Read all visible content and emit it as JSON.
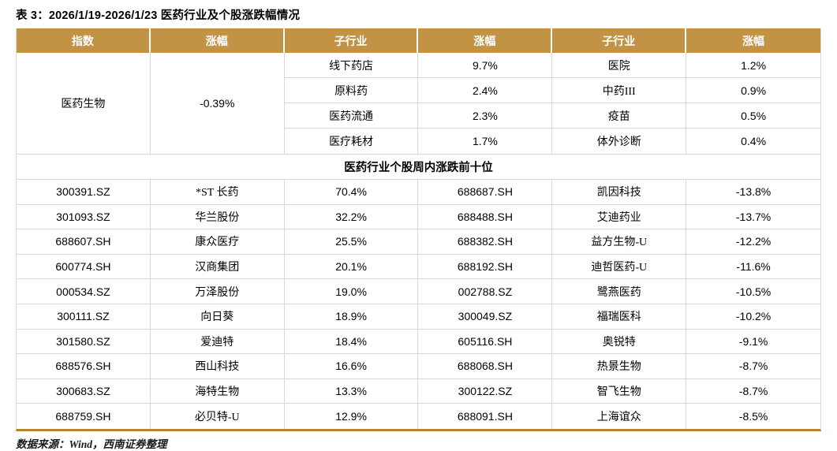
{
  "title": "表 3：2026/1/19-2026/1/23 医药行业及个股涨跌幅情况",
  "colors": {
    "header_bg": "#C29245",
    "bottom_border": "#B5832F",
    "grid_line": "#D9D9D9",
    "header_text": "#FFFFFF",
    "body_text": "#000000"
  },
  "header": {
    "col1": "指数",
    "col2": "涨幅",
    "col3": "子行业",
    "col4": "涨幅",
    "col5": "子行业",
    "col6": "涨幅"
  },
  "summary": {
    "index_name": "医药生物",
    "index_change": "-0.39%",
    "rows": [
      {
        "sub1": "线下药店",
        "chg1": "9.7%",
        "sub2": "医院",
        "chg2": "1.2%"
      },
      {
        "sub1": "原料药",
        "chg1": "2.4%",
        "sub2": "中药III",
        "chg2": "0.9%"
      },
      {
        "sub1": "医药流通",
        "chg1": "2.3%",
        "sub2": "疫苗",
        "chg2": "0.5%"
      },
      {
        "sub1": "医疗耗材",
        "chg1": "1.7%",
        "sub2": "体外诊断",
        "chg2": "0.4%"
      }
    ]
  },
  "section_header": "医药行业个股周内涨跌前十位",
  "stocks": [
    {
      "code_up": "300391.SZ",
      "name_up": "*ST 长药",
      "chg_up": "70.4%",
      "code_down": "688687.SH",
      "name_down": "凯因科技",
      "chg_down": "-13.8%"
    },
    {
      "code_up": "301093.SZ",
      "name_up": "华兰股份",
      "chg_up": "32.2%",
      "code_down": "688488.SH",
      "name_down": "艾迪药业",
      "chg_down": "-13.7%"
    },
    {
      "code_up": "688607.SH",
      "name_up": "康众医疗",
      "chg_up": "25.5%",
      "code_down": "688382.SH",
      "name_down": "益方生物-U",
      "chg_down": "-12.2%"
    },
    {
      "code_up": "600774.SH",
      "name_up": "汉商集团",
      "chg_up": "20.1%",
      "code_down": "688192.SH",
      "name_down": "迪哲医药-U",
      "chg_down": "-11.6%"
    },
    {
      "code_up": "000534.SZ",
      "name_up": "万泽股份",
      "chg_up": "19.0%",
      "code_down": "002788.SZ",
      "name_down": "鹭燕医药",
      "chg_down": "-10.5%"
    },
    {
      "code_up": "300111.SZ",
      "name_up": "向日葵",
      "chg_up": "18.9%",
      "code_down": "300049.SZ",
      "name_down": "福瑞医科",
      "chg_down": "-10.2%"
    },
    {
      "code_up": "301580.SZ",
      "name_up": "爱迪特",
      "chg_up": "18.4%",
      "code_down": "605116.SH",
      "name_down": "奥锐特",
      "chg_down": "-9.1%"
    },
    {
      "code_up": "688576.SH",
      "name_up": "西山科技",
      "chg_up": "16.6%",
      "code_down": "688068.SH",
      "name_down": "热景生物",
      "chg_down": "-8.7%"
    },
    {
      "code_up": "300683.SZ",
      "name_up": "海特生物",
      "chg_up": "13.3%",
      "code_down": "300122.SZ",
      "name_down": "智飞生物",
      "chg_down": "-8.7%"
    },
    {
      "code_up": "688759.SH",
      "name_up": "必贝特-U",
      "chg_up": "12.9%",
      "code_down": "688091.SH",
      "name_down": "上海谊众",
      "chg_down": "-8.5%"
    }
  ],
  "footer": "数据来源：Wind，西南证券整理"
}
